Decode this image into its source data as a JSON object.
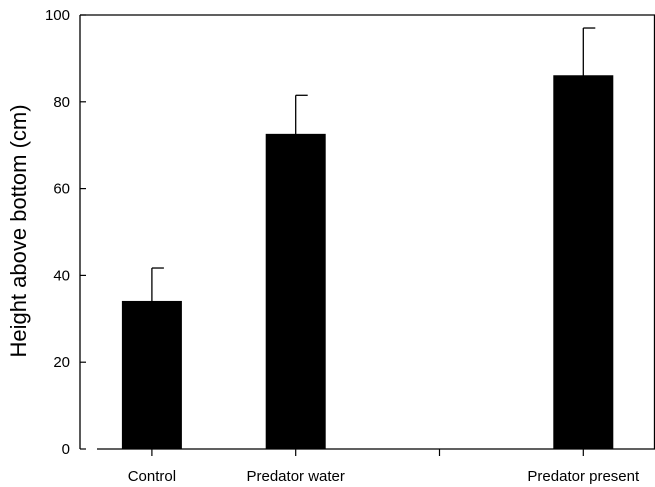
{
  "chart_data": {
    "type": "bar",
    "title": "",
    "xlabel": "",
    "ylabel": "Height above bottom (cm)",
    "ylim": [
      0,
      100
    ],
    "yticks": [
      0,
      20,
      40,
      60,
      80,
      100
    ],
    "categories": [
      "Control",
      "Predator water",
      "",
      "Predator present"
    ],
    "values": [
      34,
      72.5,
      null,
      86
    ],
    "error_upper": [
      41.7,
      81.5,
      null,
      97
    ],
    "bar_color": "#000000",
    "grid": false,
    "legend": "none"
  }
}
